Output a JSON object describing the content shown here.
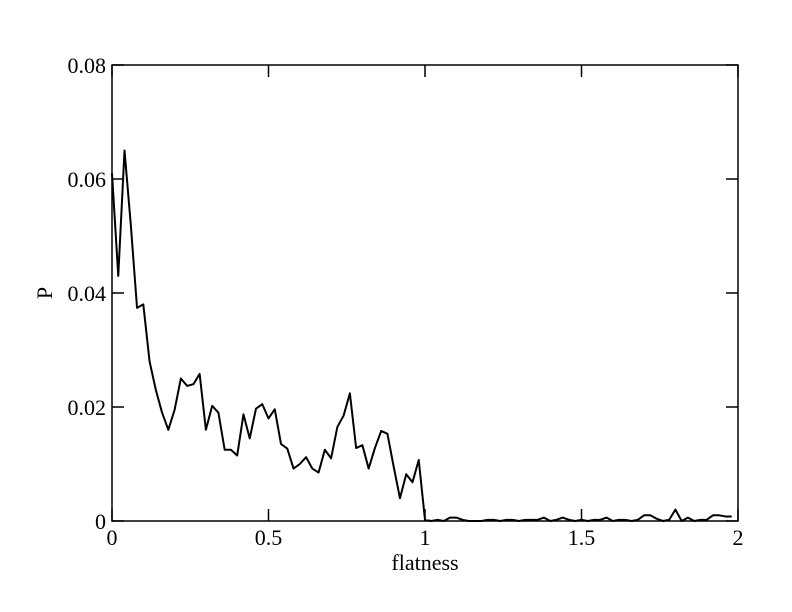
{
  "chart_data": {
    "type": "line",
    "xlabel": "flatness",
    "ylabel": "P",
    "x": [
      0,
      0.02,
      0.04,
      0.06,
      0.08,
      0.1,
      0.12,
      0.14,
      0.16,
      0.18,
      0.2,
      0.22,
      0.24,
      0.26,
      0.28,
      0.3,
      0.32,
      0.34,
      0.36,
      0.38,
      0.4,
      0.42,
      0.44,
      0.46,
      0.48,
      0.5,
      0.52,
      0.54,
      0.56,
      0.58,
      0.6,
      0.62,
      0.64,
      0.66,
      0.68,
      0.7,
      0.72,
      0.74,
      0.76,
      0.78,
      0.8,
      0.82,
      0.84,
      0.86,
      0.88,
      0.9,
      0.92,
      0.94,
      0.96,
      0.98,
      1,
      1.02,
      1.04,
      1.06,
      1.08,
      1.1,
      1.12,
      1.14,
      1.16,
      1.18,
      1.2,
      1.22,
      1.24,
      1.26,
      1.28,
      1.3,
      1.32,
      1.34,
      1.36,
      1.38,
      1.4,
      1.42,
      1.44,
      1.46,
      1.48,
      1.5,
      1.52,
      1.54,
      1.56,
      1.58,
      1.6,
      1.62,
      1.64,
      1.66,
      1.68,
      1.7,
      1.72,
      1.74,
      1.76,
      1.78,
      1.8,
      1.82,
      1.84,
      1.86,
      1.88,
      1.9,
      1.92,
      1.94,
      1.96,
      1.98
    ],
    "series": [
      {
        "color": "#000000",
        "values": [
          0.061,
          0.043,
          0.065,
          0.052,
          0.0374,
          0.038,
          0.028,
          0.023,
          0.019,
          0.016,
          0.0195,
          0.025,
          0.0237,
          0.024,
          0.0258,
          0.016,
          0.0202,
          0.019,
          0.0125,
          0.0125,
          0.0115,
          0.0187,
          0.0145,
          0.0197,
          0.0205,
          0.018,
          0.0196,
          0.0135,
          0.0127,
          0.0092,
          0.01,
          0.0112,
          0.0092,
          0.0085,
          0.0125,
          0.011,
          0.0165,
          0.0185,
          0.0224,
          0.0128,
          0.0133,
          0.0092,
          0.0128,
          0.0158,
          0.0153,
          0.0095,
          0.004,
          0.0082,
          0.0068,
          0.0107,
          0.0002,
          0,
          0.0002,
          0,
          0.0006,
          0.0006,
          0.0002,
          0,
          0,
          0,
          0.0002,
          0.0002,
          0,
          0.0002,
          0.0002,
          0,
          0.0002,
          0.0002,
          0.0002,
          0.0006,
          0,
          0.0002,
          0.0006,
          0.0002,
          0,
          0.0002,
          0,
          0.0002,
          0.0002,
          0.0006,
          0,
          0.0002,
          0.0002,
          0,
          0.0002,
          0.001,
          0.001,
          0.0004,
          0,
          0.0002,
          0.002,
          0,
          0.0006,
          0,
          0.0002,
          0.0002,
          0.001,
          0.001,
          0.0008,
          0.0008
        ]
      }
    ],
    "xlim": [
      0,
      2
    ],
    "xticks": [
      0,
      0.5,
      1,
      1.5,
      2
    ],
    "ylim": [
      0,
      0.08
    ],
    "yticks": [
      0,
      0.02,
      0.04,
      0.06,
      0.08
    ]
  }
}
